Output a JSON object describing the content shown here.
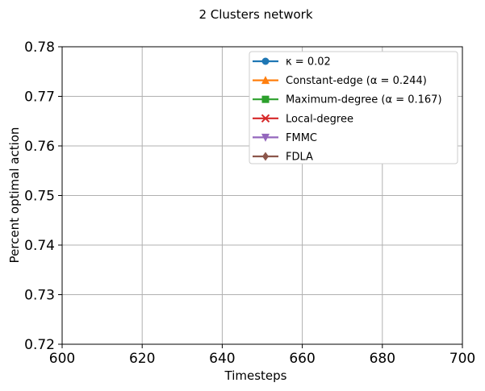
{
  "chart_data": {
    "type": "line",
    "title": "2 Clusters network",
    "xlabel": "Timesteps",
    "ylabel": "Percent optimal action",
    "xlim": [
      600,
      700
    ],
    "ylim": [
      0.72,
      0.78
    ],
    "x_ticks": [
      "600",
      "620",
      "640",
      "660",
      "680",
      "700"
    ],
    "y_ticks": [
      "0.72",
      "0.73",
      "0.74",
      "0.75",
      "0.76",
      "0.77",
      "0.78"
    ],
    "grid": true,
    "legend_position": "top-right",
    "series": [
      {
        "name": "κ = 0.02",
        "color": "#1f77b4",
        "marker": "circle",
        "values": []
      },
      {
        "name": "Constant-edge (α = 0.244)",
        "color": "#ff7f0e",
        "marker": "triangle-up",
        "values": []
      },
      {
        "name": "Maximum-degree (α = 0.167)",
        "color": "#2ca02c",
        "marker": "square",
        "values": []
      },
      {
        "name": "Local-degree",
        "color": "#d62728",
        "marker": "x",
        "values": []
      },
      {
        "name": "FMMC",
        "color": "#9467bd",
        "marker": "triangle-down",
        "values": []
      },
      {
        "name": "FDLA",
        "color": "#8c564b",
        "marker": "diamond",
        "values": []
      }
    ]
  }
}
